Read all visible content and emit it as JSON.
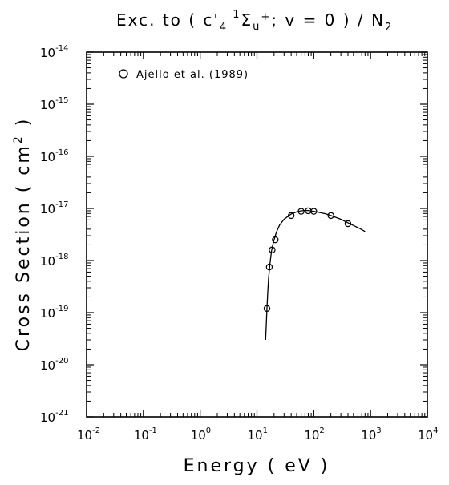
{
  "chart_data": {
    "type": "scatter",
    "title": "Exc. to (c'4 1Σu+; v=0)/N2",
    "title_parts": {
      "prefix": "Exc.  to  ( c'",
      "sub1": "4",
      "sup1": "1",
      "sigma": "Σ",
      "sub2": "u",
      "sup2": "+",
      "mid": "; v = 0 ) / N",
      "sub3": "2"
    },
    "xlabel": "Energy  ( eV )",
    "ylabel_parts": {
      "main": "Cross  Section  ( cm",
      "sup": "2",
      "end": " )"
    },
    "x_scale": "log",
    "y_scale": "log",
    "xlim": [
      0.01,
      10000
    ],
    "ylim": [
      1e-21,
      1e-14
    ],
    "x_ticks": [
      {
        "base": "10",
        "exp": "-2",
        "value": 0.01
      },
      {
        "base": "10",
        "exp": "-1",
        "value": 0.1
      },
      {
        "base": "10",
        "exp": "0",
        "value": 1
      },
      {
        "base": "10",
        "exp": "1",
        "value": 10
      },
      {
        "base": "10",
        "exp": "2",
        "value": 100
      },
      {
        "base": "10",
        "exp": "3",
        "value": 1000
      },
      {
        "base": "10",
        "exp": "4",
        "value": 10000
      }
    ],
    "y_ticks": [
      {
        "base": "10",
        "exp": "-21",
        "value": 1e-21
      },
      {
        "base": "10",
        "exp": "-20",
        "value": 1e-20
      },
      {
        "base": "10",
        "exp": "-19",
        "value": 1e-19
      },
      {
        "base": "10",
        "exp": "-18",
        "value": 1e-18
      },
      {
        "base": "10",
        "exp": "-17",
        "value": 1e-17
      },
      {
        "base": "10",
        "exp": "-16",
        "value": 1e-16
      },
      {
        "base": "10",
        "exp": "-15",
        "value": 1e-15
      },
      {
        "base": "10",
        "exp": "-14",
        "value": 1e-14
      }
    ],
    "grid": false,
    "legend_position": "top-left",
    "series": [
      {
        "name": "Ajello et al. (1989)",
        "marker": "open-circle",
        "x": [
          15,
          16.5,
          18.5,
          21,
          40,
          60,
          80,
          100,
          200,
          400
        ],
        "y": [
          1.2e-19,
          7.5e-19,
          1.6e-18,
          2.5e-18,
          7.3e-18,
          8.8e-18,
          9e-18,
          8.8e-18,
          7.3e-18,
          5.1e-18
        ]
      }
    ],
    "fit_curve": {
      "x": [
        14.2,
        14.6,
        15.0,
        15.5,
        16.0,
        17.0,
        18.0,
        19.0,
        20.0,
        22.0,
        25.0,
        30.0,
        40.0,
        50.0,
        60.0,
        70.0,
        80.0,
        100.0,
        130.0,
        160.0,
        200.0,
        300.0,
        400.0,
        500.0,
        650.0,
        800.0
      ],
      "y": [
        3e-20,
        6e-20,
        1.2e-19,
        2.5e-19,
        4.5e-19,
        9e-19,
        1.5e-18,
        2e-18,
        2.5e-18,
        3.5e-18,
        4.8e-18,
        6.2e-18,
        7.8e-18,
        8.6e-18,
        9e-18,
        9.1e-18,
        9.1e-18,
        8.8e-18,
        8.3e-18,
        7.9e-18,
        7.3e-18,
        6.2e-18,
        5.3e-18,
        4.7e-18,
        4.1e-18,
        3.6e-18
      ]
    }
  }
}
